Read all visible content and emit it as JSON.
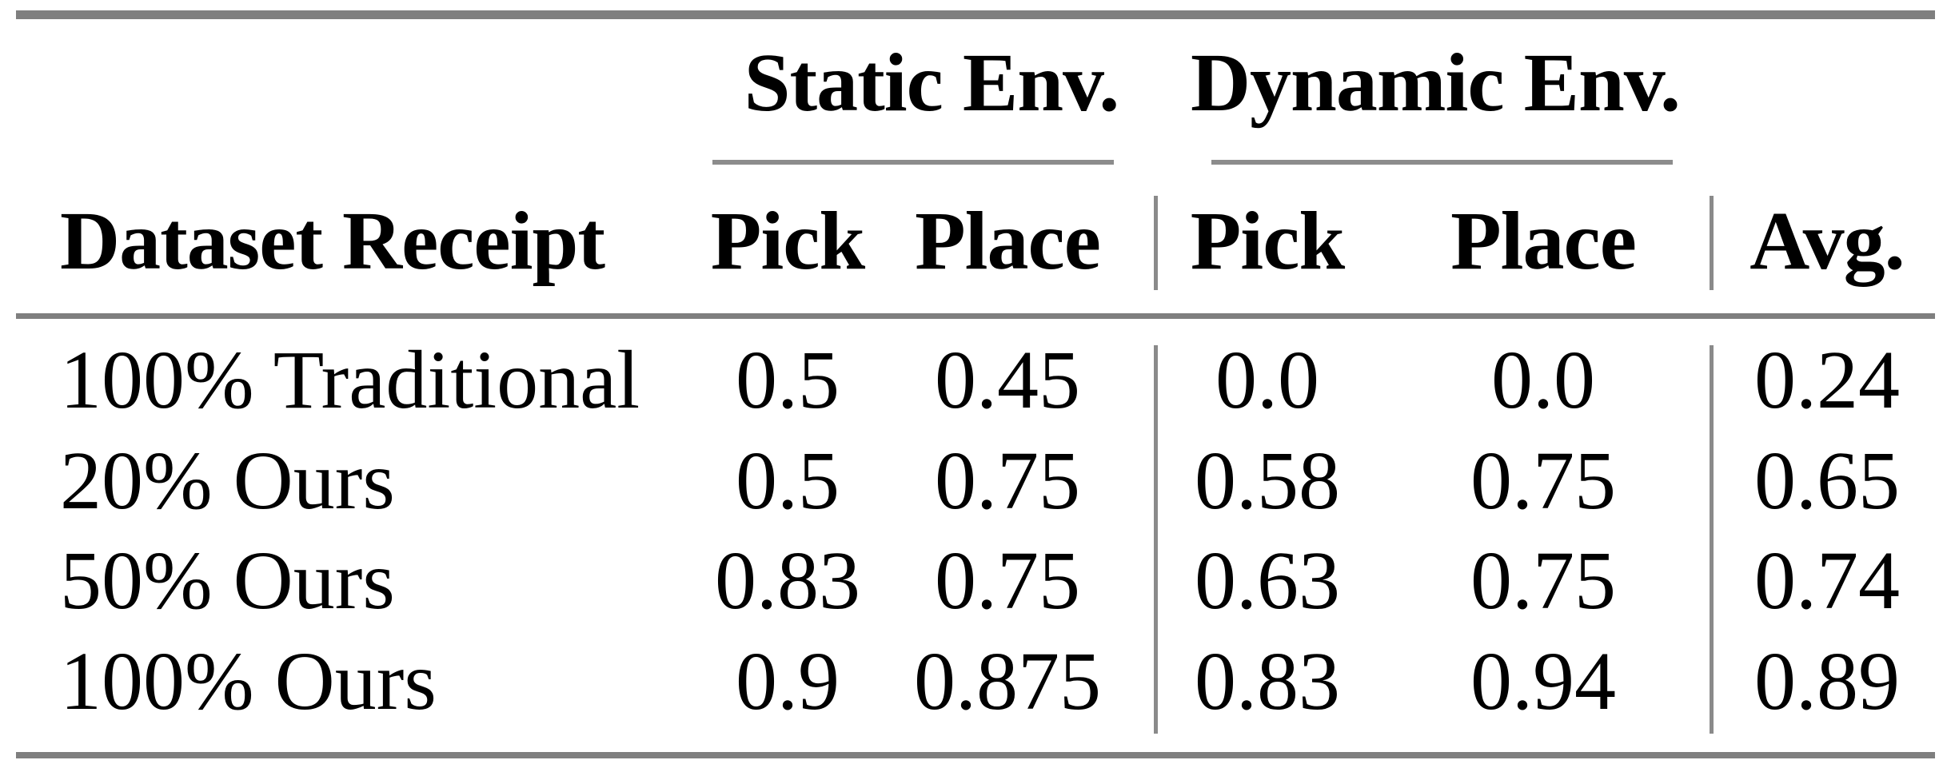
{
  "table": {
    "row_header": "Dataset Receipt",
    "groups": [
      {
        "label": "Static Env.",
        "sub": [
          "Pick",
          "Place"
        ]
      },
      {
        "label": "Dynamic Env.",
        "sub": [
          "Pick",
          "Place"
        ]
      }
    ],
    "avg_header": "Avg.",
    "rows": [
      {
        "label": "100% Traditional",
        "values": [
          "0.5",
          "0.45",
          "0.0",
          "0.0",
          "0.24"
        ]
      },
      {
        "label": "20% Ours",
        "values": [
          "0.5",
          "0.75",
          "0.58",
          "0.75",
          "0.65"
        ]
      },
      {
        "label": "50% Ours",
        "values": [
          "0.83",
          "0.75",
          "0.63",
          "0.75",
          "0.74"
        ]
      },
      {
        "label": "100% Ours",
        "values": [
          "0.9",
          "0.875",
          "0.83",
          "0.94",
          "0.89"
        ]
      }
    ]
  },
  "colors": {
    "rule_heavy": "#7f7f7f",
    "rule_light": "#8c8c8c",
    "vertical_rule": "#8a8a8a",
    "text": "#000000",
    "background": "#ffffff"
  },
  "chart_data": {
    "type": "table",
    "columns": [
      "Dataset Receipt",
      "Static Env. Pick",
      "Static Env. Place",
      "Dynamic Env. Pick",
      "Dynamic Env. Place",
      "Avg."
    ],
    "rows": [
      [
        "100% Traditional",
        0.5,
        0.45,
        0.0,
        0.0,
        0.24
      ],
      [
        "20% Ours",
        0.5,
        0.75,
        0.58,
        0.75,
        0.65
      ],
      [
        "50% Ours",
        0.83,
        0.75,
        0.63,
        0.75,
        0.74
      ],
      [
        "100% Ours",
        0.9,
        0.875,
        0.83,
        0.94,
        0.89
      ]
    ]
  }
}
